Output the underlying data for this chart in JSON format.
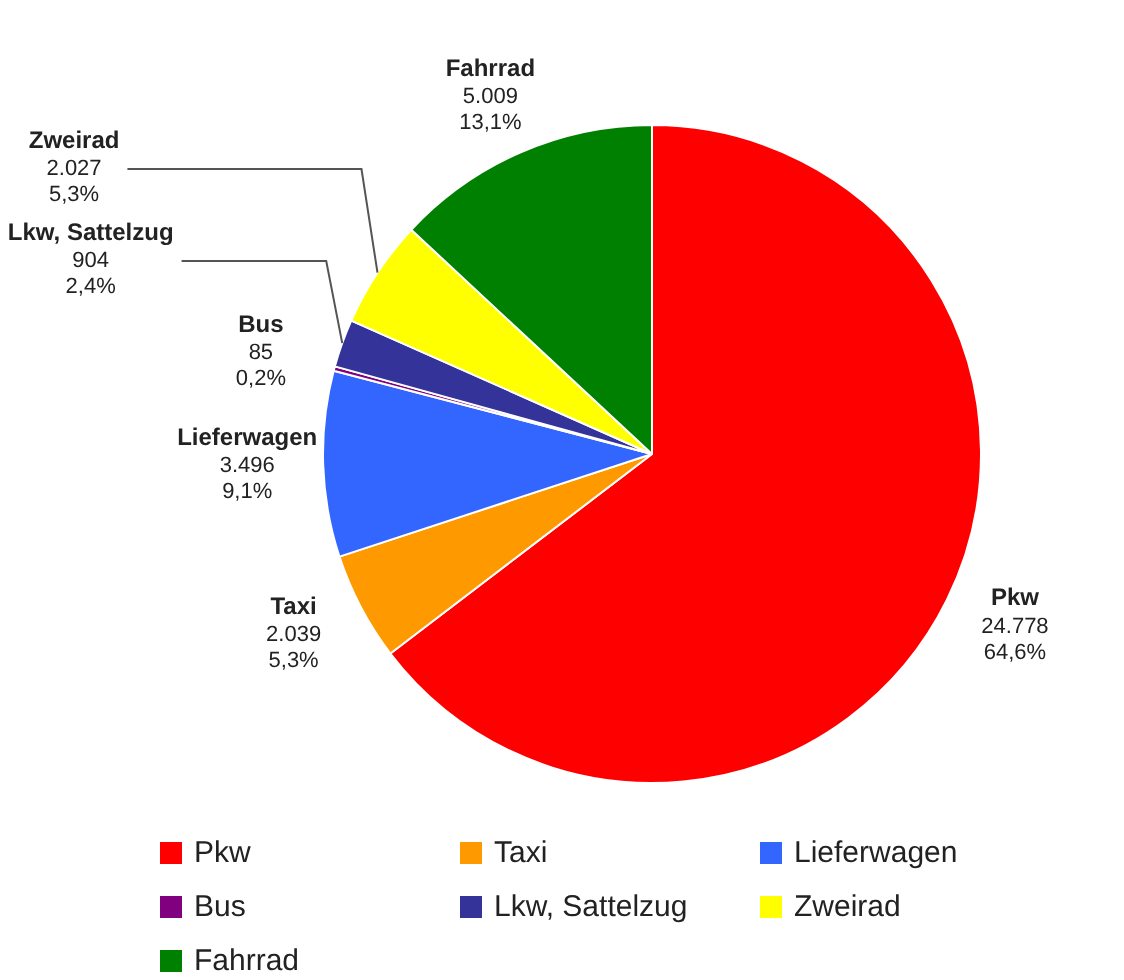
{
  "chart_data": {
    "type": "pie",
    "categories": [
      "Pkw",
      "Taxi",
      "Lieferwagen",
      "Bus",
      "Lkw, Sattelzug",
      "Zweirad",
      "Fahrrad"
    ],
    "values": [
      24778,
      2039,
      3496,
      85,
      904,
      2027,
      5009
    ],
    "colors": [
      "#ff0000",
      "#ff9900",
      "#3366ff",
      "#800080",
      "#333399",
      "#ffff00",
      "#008000"
    ],
    "value_labels": [
      "24.778\n64,6%",
      "2.039\n5,3%",
      "3.496\n9,1%",
      "85\n0,2%",
      "904\n2,4%",
      "2.027\n5,3%",
      "5.009\n13,1%"
    ],
    "legend": "bottom"
  }
}
